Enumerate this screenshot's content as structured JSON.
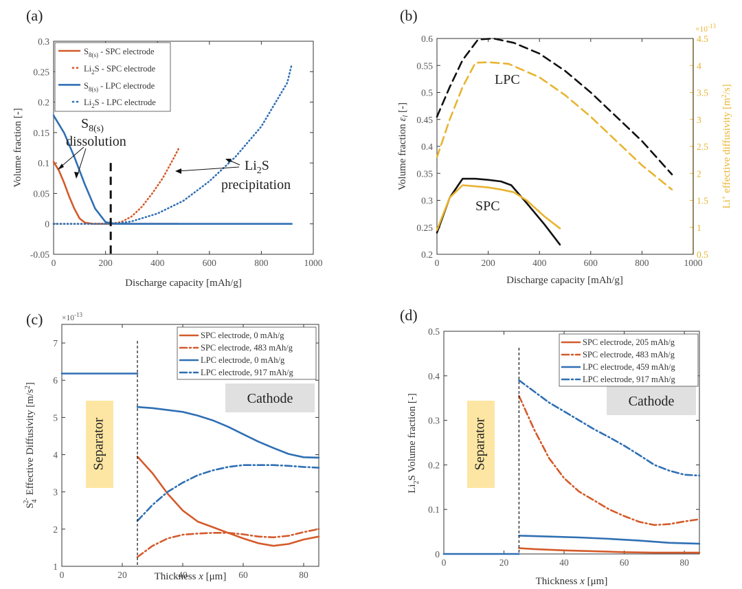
{
  "colors": {
    "orange": "#d45a2a",
    "blue": "#2f6fb3",
    "black": "#111111",
    "gold": "#e8b430",
    "separator_fill": "#fde6a3",
    "cathode_fill": "#e0e0e0"
  },
  "chart_data": [
    {
      "id": "a",
      "type": "line",
      "panel_label": "(a)",
      "xlabel": "Discharge capacity [mAh/g]",
      "ylabel": "Volume fraction [-]",
      "xlim": [
        0,
        1000
      ],
      "ylim": [
        -0.05,
        0.3
      ],
      "xticks": [
        "0",
        "200",
        "400",
        "600",
        "800",
        "1000"
      ],
      "yticks": [
        "-0.05",
        "0",
        "0.05",
        "0.1",
        "0.15",
        "0.2",
        "0.25",
        "0.3"
      ],
      "vline_x": 220,
      "legend": [
        {
          "text": "S8(s) - SPC electrode",
          "color": "orange",
          "style": "solid"
        },
        {
          "text": "Li2S - SPC electrode",
          "color": "orange",
          "style": "dotted"
        },
        {
          "text": "S8(s) - LPC electrode",
          "color": "blue",
          "style": "solid"
        },
        {
          "text": "Li2S - LPC electrode",
          "color": "blue",
          "style": "dotted"
        }
      ],
      "annotations": {
        "s8_main": "S",
        "s8_sub": "8(s)",
        "dissolution": "dissolution",
        "li2s_main": "Li",
        "li2s_sub": "2",
        "li2s_tail": "S",
        "precipitation": "precipitation"
      },
      "series": [
        {
          "name": "S8(s) - SPC electrode",
          "color": "orange",
          "style": "solid",
          "x": [
            0,
            20,
            40,
            60,
            80,
            100,
            120,
            150,
            200,
            480
          ],
          "y": [
            0.102,
            0.088,
            0.068,
            0.045,
            0.025,
            0.009,
            0.002,
            0.0,
            0.0,
            0.0
          ]
        },
        {
          "name": "Li2S - SPC electrode",
          "color": "orange",
          "style": "dotted",
          "x": [
            0,
            200,
            220,
            260,
            300,
            340,
            380,
            420,
            460,
            483
          ],
          "y": [
            0.0,
            0.0,
            0.0005,
            0.003,
            0.012,
            0.028,
            0.05,
            0.075,
            0.106,
            0.125
          ]
        },
        {
          "name": "S8(s) - LPC electrode",
          "color": "blue",
          "style": "solid",
          "x": [
            0,
            40,
            80,
            120,
            160,
            200,
            240,
            917
          ],
          "y": [
            0.178,
            0.15,
            0.11,
            0.065,
            0.025,
            0.003,
            0.0,
            0.0
          ]
        },
        {
          "name": "Li2S - LPC electrode",
          "color": "blue",
          "style": "dotted",
          "x": [
            0,
            200,
            240,
            300,
            400,
            500,
            600,
            700,
            800,
            900,
            917
          ],
          "y": [
            0.0,
            0.0,
            0.0005,
            0.004,
            0.017,
            0.038,
            0.07,
            0.11,
            0.16,
            0.232,
            0.262
          ]
        }
      ]
    },
    {
      "id": "b",
      "type": "line",
      "panel_label": "(b)",
      "xlabel": "Discharge capacity [mAh/g]",
      "ylabel_main": "Volume fraction ",
      "ylabel_sym": "ε",
      "ylabel_sub": "l",
      "ylabel_tail": " [-]",
      "ylabel_right": "Li+ effective diffusivity [m2/s]",
      "ylabel_right_pre": "Li",
      "ylabel_right_sup": "+",
      "ylabel_right_mid": " effective diffusivity [m",
      "ylabel_right_sup2": "2",
      "ylabel_right_end": "/s]",
      "right_multiplier_base": "×10",
      "right_multiplier_exp": "-13",
      "xlim": [
        0,
        1000
      ],
      "ylim": [
        0.2,
        0.6
      ],
      "ylim_right": [
        0.5,
        4.5
      ],
      "xticks": [
        "0",
        "200",
        "400",
        "600",
        "800",
        "1000"
      ],
      "yticks": [
        "0.2",
        "0.25",
        "0.3",
        "0.35",
        "0.4",
        "0.45",
        "0.5",
        "0.55",
        "0.6"
      ],
      "yticks_right": [
        "0.5",
        "1",
        "1.5",
        "2",
        "2.5",
        "3",
        "3.5",
        "4",
        "4.5"
      ],
      "labels": {
        "lpc": "LPC",
        "spc": "SPC"
      },
      "series": [
        {
          "name": "LPC volume fraction",
          "color": "black",
          "style": "dashed",
          "axis": "left",
          "x": [
            0,
            50,
            100,
            160,
            220,
            300,
            400,
            500,
            600,
            700,
            800,
            917
          ],
          "y": [
            0.455,
            0.51,
            0.56,
            0.598,
            0.6,
            0.592,
            0.572,
            0.54,
            0.5,
            0.455,
            0.41,
            0.348
          ]
        },
        {
          "name": "LPC Li+ effective diffusivity",
          "color": "gold",
          "style": "dashed",
          "axis": "right",
          "x": [
            0,
            50,
            100,
            150,
            200,
            280,
            400,
            500,
            600,
            700,
            800,
            917
          ],
          "y": [
            2.3,
            3.0,
            3.6,
            4.05,
            4.06,
            4.03,
            3.78,
            3.45,
            3.05,
            2.6,
            2.15,
            1.7
          ]
        },
        {
          "name": "SPC volume fraction",
          "color": "black",
          "style": "solid",
          "axis": "left",
          "x": [
            0,
            50,
            100,
            150,
            200,
            250,
            290,
            350,
            420,
            480
          ],
          "y": [
            0.24,
            0.305,
            0.34,
            0.34,
            0.338,
            0.335,
            0.328,
            0.295,
            0.255,
            0.218
          ]
        },
        {
          "name": "SPC Li+ effective diffusivity",
          "color": "gold",
          "style": "solid",
          "axis": "right",
          "x": [
            0,
            50,
            100,
            150,
            200,
            250,
            300,
            350,
            420,
            480
          ],
          "y": [
            0.95,
            1.55,
            1.78,
            1.76,
            1.74,
            1.7,
            1.65,
            1.5,
            1.2,
            0.98
          ]
        }
      ]
    },
    {
      "id": "c",
      "type": "line",
      "panel_label": "(c)",
      "xlabel_text": "Thickness ",
      "xlabel_var": "x",
      "xlabel_unit": " [μm]",
      "ylabel_pre": "S",
      "ylabel_sub": "4",
      "ylabel_sup": "2-",
      "ylabel_tail": " Effective Diffusivity [m/s",
      "ylabel_sup2": "2",
      "ylabel_end": "]",
      "multiplier_base": "×10",
      "multiplier_exp": "-13",
      "xlim": [
        0,
        85
      ],
      "ylim": [
        1,
        7.5
      ],
      "xticks": [
        "0",
        "20",
        "40",
        "60",
        "80"
      ],
      "yticks": [
        "1",
        "2",
        "3",
        "4",
        "5",
        "6",
        "7"
      ],
      "vline_x": 25,
      "separator_label": "Separator",
      "cathode_label": "Cathode",
      "legend": [
        {
          "text": "SPC electrode, 0 mAh/g",
          "color": "orange",
          "style": "solid"
        },
        {
          "text": "SPC electrode, 483 mAh/g",
          "color": "orange",
          "style": "dashdot"
        },
        {
          "text": "LPC electrode, 0 mAh/g",
          "color": "blue",
          "style": "solid"
        },
        {
          "text": "LPC electrode, 917 mAh/g",
          "color": "blue",
          "style": "dashdot"
        }
      ],
      "series": [
        {
          "name": "Separator",
          "color": "blue",
          "style": "solid",
          "x": [
            0,
            25
          ],
          "y": [
            6.18,
            6.18
          ]
        },
        {
          "name": "SPC electrode, 0 mAh/g",
          "color": "orange",
          "style": "solid",
          "x": [
            25,
            30,
            35,
            40,
            45,
            50,
            55,
            60,
            65,
            70,
            75,
            80,
            85
          ],
          "y": [
            3.95,
            3.5,
            2.95,
            2.5,
            2.2,
            2.05,
            1.9,
            1.75,
            1.62,
            1.55,
            1.6,
            1.72,
            1.8
          ]
        },
        {
          "name": "SPC electrode, 483 mAh/g",
          "color": "orange",
          "style": "dashdot",
          "x": [
            25,
            30,
            35,
            40,
            45,
            50,
            55,
            60,
            65,
            70,
            75,
            80,
            85
          ],
          "y": [
            1.25,
            1.55,
            1.75,
            1.85,
            1.88,
            1.9,
            1.9,
            1.86,
            1.8,
            1.78,
            1.82,
            1.92,
            2.0
          ]
        },
        {
          "name": "LPC electrode, 0 mAh/g",
          "color": "blue",
          "style": "solid",
          "x": [
            25,
            30,
            35,
            40,
            45,
            50,
            55,
            60,
            65,
            70,
            75,
            80,
            85
          ],
          "y": [
            5.28,
            5.25,
            5.2,
            5.15,
            5.05,
            4.92,
            4.75,
            4.55,
            4.35,
            4.18,
            4.02,
            3.93,
            3.92
          ]
        },
        {
          "name": "LPC electrode, 917 mAh/g",
          "color": "blue",
          "style": "dashdot",
          "x": [
            25,
            30,
            35,
            40,
            45,
            50,
            55,
            60,
            65,
            70,
            75,
            80,
            85
          ],
          "y": [
            2.22,
            2.65,
            3.0,
            3.25,
            3.45,
            3.58,
            3.67,
            3.72,
            3.72,
            3.72,
            3.7,
            3.67,
            3.65
          ]
        }
      ]
    },
    {
      "id": "d",
      "type": "line",
      "panel_label": "(d)",
      "xlabel_text": "Thickness ",
      "xlabel_var": "x",
      "xlabel_unit": " [μm]",
      "ylabel_pre": "Li",
      "ylabel_sub": "2",
      "ylabel_tail": "S Volume fraction [-]",
      "xlim": [
        0,
        85
      ],
      "ylim": [
        0,
        0.5
      ],
      "xticks": [
        "0",
        "20",
        "40",
        "60",
        "80"
      ],
      "yticks": [
        "0",
        "0.1",
        "0.2",
        "0.3",
        "0.4",
        "0.5"
      ],
      "vline_x": 25,
      "separator_label": "Separator",
      "cathode_label": "Cathode",
      "legend": [
        {
          "text": "SPC electrode, 205 mAh/g",
          "color": "orange",
          "style": "solid"
        },
        {
          "text": "SPC electrode, 483 mAh/g",
          "color": "orange",
          "style": "dashdot"
        },
        {
          "text": "LPC electrode, 459 mAh/g",
          "color": "blue",
          "style": "solid"
        },
        {
          "text": "LPC electrode, 917 mAh/g",
          "color": "blue",
          "style": "dashdot"
        }
      ],
      "series": [
        {
          "name": "Separator",
          "color": "blue",
          "style": "solid",
          "x": [
            0,
            25
          ],
          "y": [
            0.0,
            0.0
          ]
        },
        {
          "name": "SPC electrode, 205 mAh/g",
          "color": "orange",
          "style": "solid",
          "x": [
            25,
            30,
            40,
            50,
            60,
            70,
            80,
            85
          ],
          "y": [
            0.013,
            0.011,
            0.008,
            0.006,
            0.004,
            0.003,
            0.003,
            0.003
          ]
        },
        {
          "name": "SPC electrode, 483 mAh/g",
          "color": "orange",
          "style": "dashdot",
          "x": [
            25,
            30,
            35,
            40,
            45,
            50,
            55,
            60,
            65,
            70,
            75,
            80,
            85
          ],
          "y": [
            0.355,
            0.28,
            0.215,
            0.17,
            0.14,
            0.12,
            0.1,
            0.085,
            0.072,
            0.065,
            0.067,
            0.073,
            0.078
          ]
        },
        {
          "name": "LPC electrode, 459 mAh/g",
          "color": "blue",
          "style": "solid",
          "x": [
            25,
            35,
            45,
            55,
            65,
            75,
            85
          ],
          "y": [
            0.041,
            0.039,
            0.037,
            0.034,
            0.03,
            0.025,
            0.023
          ]
        },
        {
          "name": "LPC electrode, 917 mAh/g",
          "color": "blue",
          "style": "dashdot",
          "x": [
            25,
            30,
            35,
            40,
            45,
            50,
            55,
            60,
            65,
            70,
            75,
            80,
            85
          ],
          "y": [
            0.39,
            0.365,
            0.34,
            0.32,
            0.3,
            0.28,
            0.262,
            0.243,
            0.222,
            0.2,
            0.187,
            0.178,
            0.176
          ]
        }
      ]
    }
  ]
}
